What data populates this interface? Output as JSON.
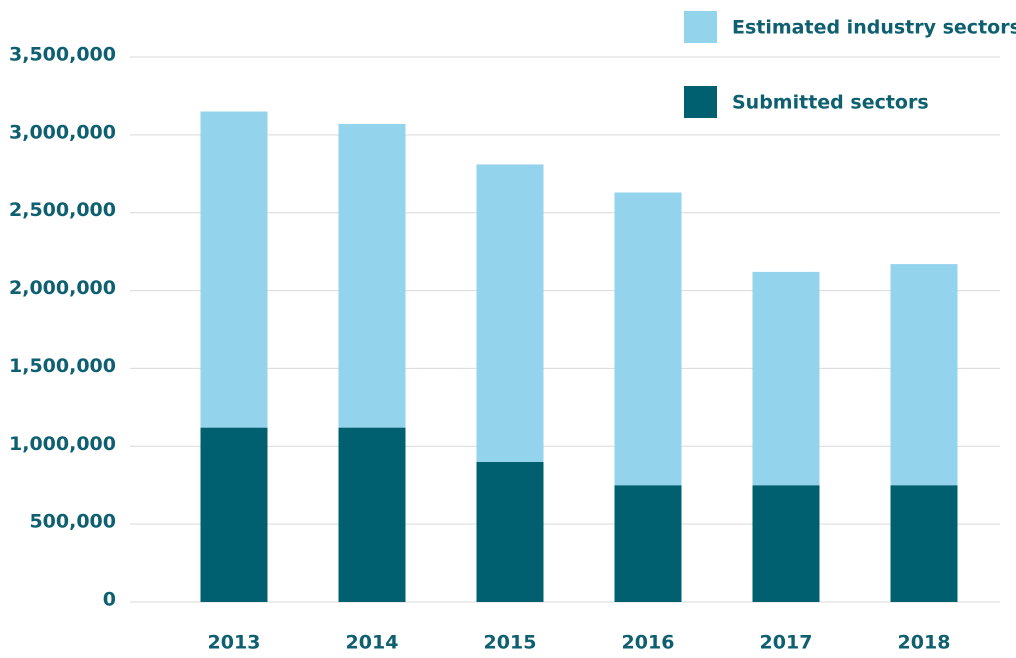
{
  "chart_data": {
    "type": "stacked_bar",
    "categories": [
      "2013",
      "2014",
      "2015",
      "2016",
      "2017",
      "2018"
    ],
    "series": [
      {
        "name": "Submitted sectors",
        "color": "#00606f",
        "values": [
          1120000,
          1120000,
          900000,
          750000,
          750000,
          750000
        ]
      },
      {
        "name": "Estimated industry sectors",
        "color": "#93d3eb",
        "values": [
          2030000,
          1950000,
          1910000,
          1880000,
          1370000,
          1420000
        ]
      }
    ],
    "ylim": [
      0,
      3500000
    ],
    "yticks": [
      0,
      {
        "value": 500000,
        "label": "500,000"
      },
      {
        "value": 1000000,
        "label": "1,000,000"
      },
      {
        "value": 1500000,
        "label": "1,500,000"
      },
      {
        "value": 2000000,
        "label": "2,000,000"
      },
      {
        "value": 2500000,
        "label": "2,500,000"
      },
      {
        "value": 3000000,
        "label": "3,000,000"
      },
      {
        "value": 3500000,
        "label": "3,500,000"
      }
    ],
    "grid": true
  }
}
